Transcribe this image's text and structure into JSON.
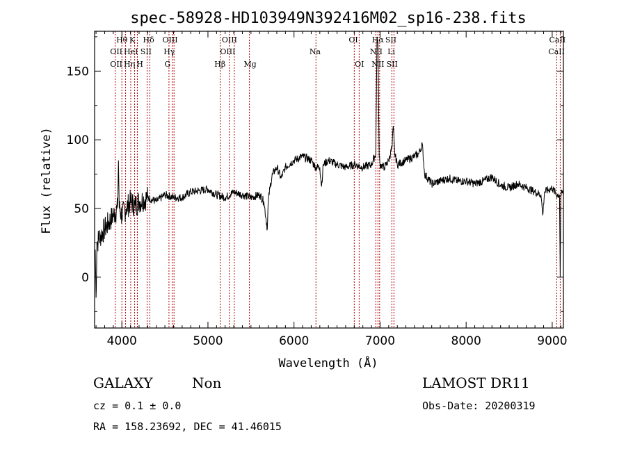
{
  "chart_data": {
    "type": "line",
    "title": "spec-58928-HD103949N392416M02_sp16-238.fits",
    "xlabel": "Wavelength (Å)",
    "ylabel": "Flux (relative)",
    "xlim": [
      3683,
      9130
    ],
    "ylim": [
      -37,
      179
    ],
    "xticks": [
      4000,
      5000,
      6000,
      7000,
      8000,
      9000
    ],
    "xtick_labels": [
      "4000",
      "5000",
      "6000",
      "7000",
      "8000",
      "9000"
    ],
    "yticks": [
      0,
      50,
      100,
      150
    ],
    "ytick_labels": [
      "0",
      "50",
      "100",
      "150"
    ],
    "grid": false,
    "line_color": "#000000",
    "marker_color": "#b00000",
    "series": [
      {
        "name": "spectrum",
        "x": [
          3690,
          3700,
          3710,
          3750,
          3800,
          3850,
          3900,
          3950,
          3960,
          3970,
          4000,
          4050,
          4100,
          4150,
          4200,
          4300,
          4400,
          4500,
          4600,
          4700,
          4800,
          4900,
          5000,
          5100,
          5200,
          5300,
          5400,
          5500,
          5600,
          5650,
          5690,
          5700,
          5720,
          5750,
          5800,
          5850,
          5900,
          6000,
          6100,
          6200,
          6250,
          6300,
          6320,
          6340,
          6400,
          6500,
          6600,
          6700,
          6800,
          6900,
          6950,
          6965,
          6975,
          6990,
          7000,
          7050,
          7100,
          7140,
          7153,
          7170,
          7200,
          7300,
          7400,
          7450,
          7490,
          7517,
          7600,
          7700,
          7800,
          7900,
          8000,
          8100,
          8200,
          8300,
          8400,
          8500,
          8600,
          8700,
          8800,
          8870,
          8890,
          8910,
          9000,
          9050,
          9085,
          9093,
          9100,
          9130
        ],
        "y": [
          20,
          -15,
          25,
          30,
          35,
          40,
          45,
          50,
          85,
          50,
          45,
          50,
          55,
          52,
          55,
          58,
          55,
          60,
          58,
          58,
          62,
          63,
          64,
          60,
          58,
          62,
          60,
          58,
          60,
          55,
          35,
          55,
          65,
          75,
          80,
          72,
          80,
          85,
          88,
          85,
          80,
          80,
          66,
          82,
          85,
          82,
          80,
          82,
          80,
          82,
          90,
          175,
          170,
          88,
          82,
          80,
          85,
          95,
          110,
          90,
          82,
          85,
          88,
          90,
          97,
          75,
          68,
          70,
          72,
          70,
          70,
          68,
          70,
          73,
          67,
          65,
          68,
          65,
          62,
          60,
          45,
          62,
          65,
          60,
          60,
          0,
          60,
          62
        ]
      }
    ],
    "line_markers": [
      3922,
      4000,
      4043,
      4103,
      4148,
      4180,
      4293,
      4325,
      4547,
      4584,
      4606,
      5142,
      5247,
      5306,
      5482,
      6255,
      6700,
      6757,
      6950,
      6975,
      6995,
      7137,
      7161,
      9052,
      9093
    ],
    "line_label_rows": [
      [
        {
          "text": "Hθ",
          "x": 4000
        },
        {
          "text": "K",
          "x": 4120
        },
        {
          "text": "Hδ",
          "x": 4310
        },
        {
          "text": "OIII",
          "x": 4560
        },
        {
          "text": "OIII",
          "x": 5250
        },
        {
          "text": "OI",
          "x": 6690
        },
        {
          "text": "Hα",
          "x": 6975
        },
        {
          "text": "SII",
          "x": 7125
        },
        {
          "text": "CaII",
          "x": 9060
        }
      ],
      [
        {
          "text": "OII",
          "x": 3935
        },
        {
          "text": "HeI",
          "x": 4080
        },
        {
          "text": "SII",
          "x": 4280
        },
        {
          "text": "Hγ",
          "x": 4550
        },
        {
          "text": "OIII",
          "x": 5230
        },
        {
          "text": "Na",
          "x": 6245
        },
        {
          "text": "NII",
          "x": 6955
        },
        {
          "text": "Li",
          "x": 7130
        },
        {
          "text": "CaII",
          "x": 9050
        }
      ],
      [
        {
          "text": "OII",
          "x": 3935
        },
        {
          "text": "Hη",
          "x": 4030
        },
        {
          "text": "H",
          "x": 4170
        },
        {
          "text": "G",
          "x": 4530
        },
        {
          "text": "Hβ",
          "x": 5140
        },
        {
          "text": "Mg",
          "x": 5490
        },
        {
          "text": "OI",
          "x": 6760
        },
        {
          "text": "NII",
          "x": 6975
        },
        {
          "text": "SII",
          "x": 7140
        }
      ]
    ]
  },
  "footer": {
    "object_class": "GALAXY",
    "subclass": "Non",
    "survey": "LAMOST DR11",
    "cz": "cz = 0.1 ± 0.0",
    "obs_date": "Obs-Date: 20200319",
    "coords": "RA = 158.23692, DEC =  41.46015"
  }
}
